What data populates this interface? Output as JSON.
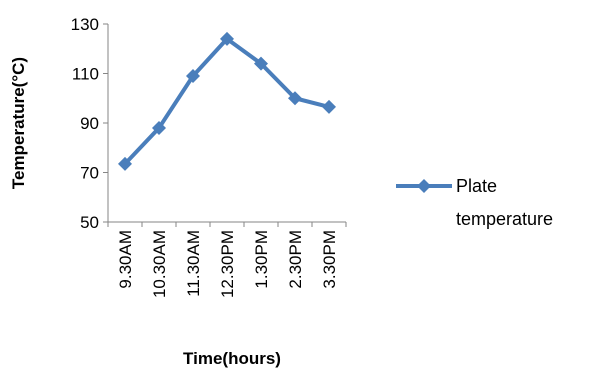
{
  "chart_data": {
    "type": "line",
    "categories": [
      "9.30AM",
      "10.30AM",
      "11.30AM",
      "12.30PM",
      "1.30PM",
      "2.30PM",
      "3.30PM"
    ],
    "series": [
      {
        "name": "Plate temperature",
        "values": [
          73.5,
          88,
          109,
          124,
          114,
          100,
          96.5
        ],
        "color": "#4a7ebb",
        "marker": "diamond"
      }
    ],
    "xlabel": "Time(hours)",
    "ylabel": "Temperature(°C)",
    "ylim": [
      50,
      130
    ],
    "yticks": [
      50,
      70,
      90,
      110,
      130
    ],
    "grid": false,
    "legend_position": "right",
    "legend_lines": [
      "Plate",
      "temperature"
    ]
  }
}
